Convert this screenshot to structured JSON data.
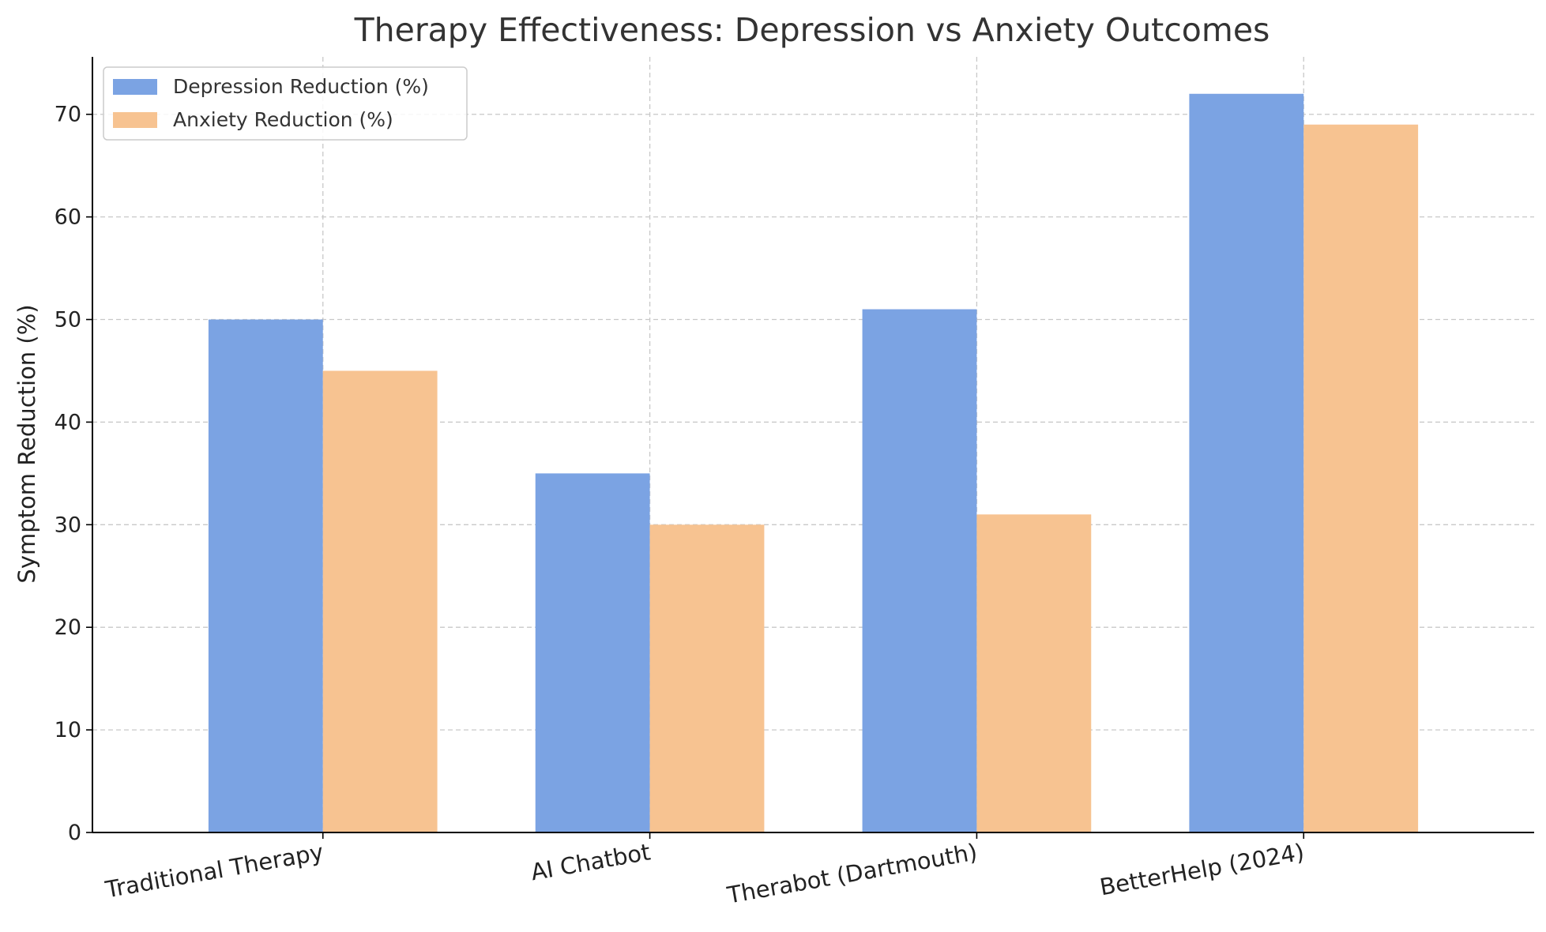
{
  "chart_data": {
    "type": "bar",
    "title": "Therapy Effectiveness: Depression vs Anxiety Outcomes",
    "xlabel": "",
    "ylabel": "Symptom Reduction (%)",
    "categories": [
      "Traditional Therapy",
      "AI Chatbot",
      "Therabot (Dartmouth)",
      "BetterHelp (2024)"
    ],
    "series": [
      {
        "name": "Depression Reduction (%)",
        "values": [
          50,
          35,
          51,
          72
        ],
        "color": "#7ba3e3"
      },
      {
        "name": "Anxiety Reduction (%)",
        "values": [
          45,
          30,
          31,
          69
        ],
        "color": "#f7c391"
      }
    ],
    "ylim": [
      0,
      75.6
    ],
    "yticks": [
      0,
      10,
      20,
      30,
      40,
      50,
      60,
      70
    ],
    "grid": true,
    "legend_position": "top-left"
  }
}
